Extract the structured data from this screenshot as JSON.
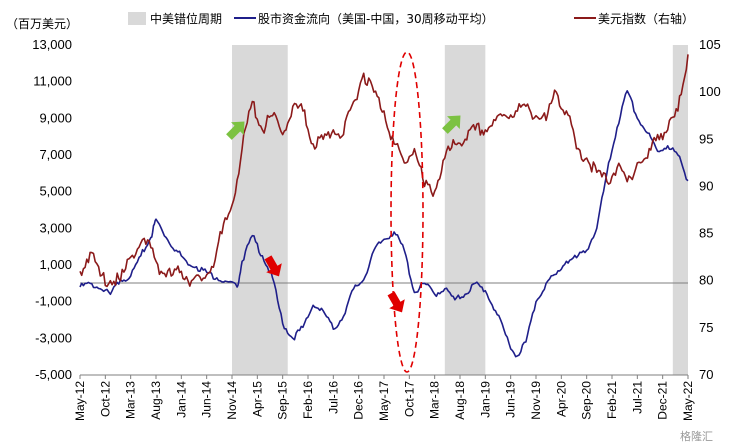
{
  "chart_data": {
    "type": "line",
    "title": "",
    "left_unit": "（百万美元）",
    "legend": {
      "placement": "top",
      "items": [
        {
          "key": "shade",
          "label": "中美错位周期",
          "color": "#d9d9d9"
        },
        {
          "key": "flows",
          "label": "股市资金流向（美国-中国，30周移动平均）",
          "color": "#1f1f8a"
        },
        {
          "key": "dxy",
          "label": "美元指数（右轴）",
          "color": "#8b1a1a"
        }
      ]
    },
    "y_left": {
      "min": -5000,
      "max": 13000,
      "ticks": [
        "13,000",
        "11,000",
        "9,000",
        "7,000",
        "5,000",
        "3,000",
        "1,000",
        "-1,000",
        "-3,000",
        "-5,000"
      ],
      "tick_values": [
        13000,
        11000,
        9000,
        7000,
        5000,
        3000,
        1000,
        -1000,
        -3000,
        -5000
      ]
    },
    "y_right": {
      "min": 70,
      "max": 105,
      "ticks": [
        "105",
        "100",
        "95",
        "90",
        "85",
        "80",
        "75",
        "70"
      ],
      "tick_values": [
        105,
        100,
        95,
        90,
        85,
        80,
        75,
        70
      ]
    },
    "x_start": "2012-05",
    "x_end": "2022-05",
    "x_ticks": [
      "May-12",
      "Oct-12",
      "Mar-13",
      "Aug-13",
      "Jan-14",
      "Jun-14",
      "Nov-14",
      "Apr-15",
      "Sep-15",
      "Feb-16",
      "Jul-16",
      "Dec-16",
      "May-17",
      "Oct-17",
      "Mar-18",
      "Aug-18",
      "Jan-19",
      "Jun-19",
      "Nov-19",
      "Apr-20",
      "Sep-20",
      "Feb-21",
      "Jul-21",
      "Dec-21",
      "May-22"
    ],
    "shaded_periods": [
      [
        "2014-11",
        "2015-10"
      ],
      [
        "2018-05",
        "2019-01"
      ],
      [
        "2022-02",
        "2022-05"
      ]
    ],
    "grid": false,
    "series": [
      {
        "name": "股市资金流向（美国-中国，30周移动平均）",
        "axis": "left",
        "color": "#1f1f8a",
        "x": [
          "2012-05",
          "2012-07",
          "2012-09",
          "2012-11",
          "2013-01",
          "2013-03",
          "2013-05",
          "2013-07",
          "2013-08",
          "2013-10",
          "2013-12",
          "2014-02",
          "2014-04",
          "2014-06",
          "2014-08",
          "2014-10",
          "2014-12",
          "2015-01",
          "2015-03",
          "2015-05",
          "2015-07",
          "2015-09",
          "2015-11",
          "2016-01",
          "2016-03",
          "2016-05",
          "2016-07",
          "2016-09",
          "2016-11",
          "2017-01",
          "2017-03",
          "2017-05",
          "2017-07",
          "2017-09",
          "2017-11",
          "2018-01",
          "2018-03",
          "2018-05",
          "2018-07",
          "2018-09",
          "2018-11",
          "2019-01",
          "2019-03",
          "2019-05",
          "2019-07",
          "2019-09",
          "2019-11",
          "2020-01",
          "2020-03",
          "2020-05",
          "2020-07",
          "2020-09",
          "2020-11",
          "2021-01",
          "2021-03",
          "2021-05",
          "2021-07",
          "2021-09",
          "2021-11",
          "2022-01",
          "2022-03",
          "2022-05"
        ],
        "values": [
          -200,
          0,
          -300,
          -600,
          200,
          400,
          1500,
          2500,
          3500,
          2500,
          1800,
          1200,
          900,
          600,
          300,
          100,
          -200,
          1200,
          2600,
          1500,
          300,
          -2200,
          -3000,
          -2400,
          -1200,
          -1500,
          -2500,
          -1800,
          -300,
          200,
          1800,
          2400,
          2800,
          1800,
          -500,
          0,
          -600,
          -300,
          -900,
          -600,
          0,
          -400,
          -1500,
          -2800,
          -4000,
          -3200,
          -1000,
          0,
          500,
          1200,
          1400,
          1800,
          3000,
          6000,
          8500,
          10500,
          9000,
          8200,
          7200,
          7500,
          7000,
          5600
        ]
      },
      {
        "name": "美元指数（右轴）",
        "axis": "right",
        "color": "#8b1a1a",
        "x": [
          "2012-05",
          "2012-07",
          "2012-09",
          "2012-11",
          "2013-01",
          "2013-03",
          "2013-05",
          "2013-07",
          "2013-09",
          "2013-11",
          "2014-01",
          "2014-03",
          "2014-05",
          "2014-07",
          "2014-09",
          "2014-11",
          "2015-01",
          "2015-03",
          "2015-05",
          "2015-07",
          "2015-09",
          "2015-11",
          "2016-01",
          "2016-03",
          "2016-05",
          "2016-07",
          "2016-09",
          "2016-11",
          "2017-01",
          "2017-03",
          "2017-05",
          "2017-07",
          "2017-09",
          "2017-11",
          "2018-01",
          "2018-03",
          "2018-05",
          "2018-07",
          "2018-09",
          "2018-11",
          "2019-01",
          "2019-03",
          "2019-05",
          "2019-07",
          "2019-09",
          "2019-11",
          "2020-01",
          "2020-03",
          "2020-05",
          "2020-07",
          "2020-09",
          "2020-11",
          "2021-01",
          "2021-03",
          "2021-05",
          "2021-07",
          "2021-09",
          "2021-11",
          "2022-01",
          "2022-03",
          "2022-05"
        ],
        "values": [
          81,
          83,
          80.5,
          80,
          80,
          82.5,
          84,
          83.5,
          81,
          80.5,
          81,
          80,
          80,
          81.5,
          85,
          88,
          94,
          99,
          96,
          97.5,
          95.5,
          98.5,
          98,
          94.5,
          95,
          96,
          95.5,
          99,
          102,
          100,
          98,
          94.5,
          92.5,
          94,
          90,
          89.5,
          93,
          94.5,
          95,
          96,
          96,
          97,
          97.5,
          98,
          98.5,
          97.5,
          97,
          100,
          98,
          94,
          93,
          91.5,
          90.5,
          92,
          90.5,
          92.5,
          93,
          95.5,
          96,
          98,
          104
        ]
      }
    ]
  },
  "watermark": "格隆汇"
}
